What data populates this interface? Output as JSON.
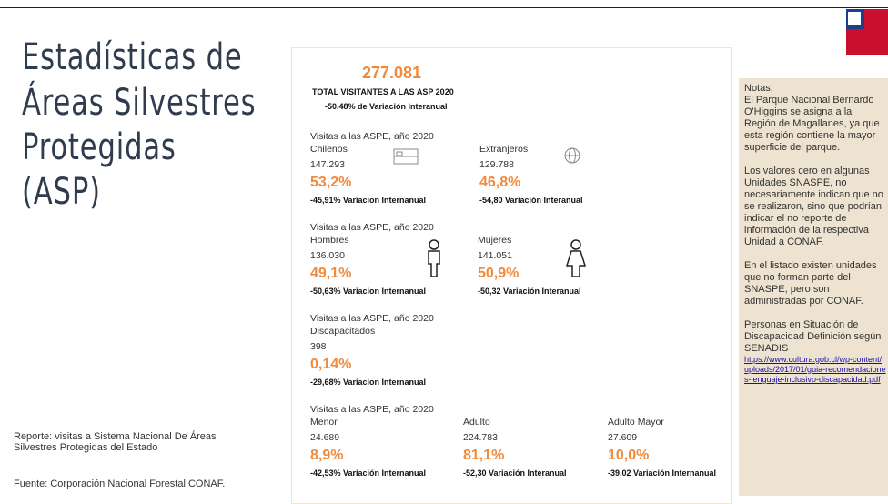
{
  "header": {
    "title_lines": [
      "Estadísticas de",
      "Áreas Silvestres",
      "Protegidas",
      "(ASP)"
    ]
  },
  "footer": {
    "report": "Reporte: visitas a Sistema Nacional De Áreas Silvestres Protegidas del Estado",
    "source": "Fuente: Corporación Nacional Forestal CONAF."
  },
  "total": {
    "value": "277.081",
    "label": "TOTAL VISITANTES A LAS ASP 2020",
    "variation": "-50,48% de Variación Interanual"
  },
  "groups": [
    {
      "heading": "Visitas a las ASPE, año 2020",
      "items": [
        {
          "name": "Chilenos",
          "count": "147.293",
          "percent": "53,2%",
          "variation": "-45,91% Variacion Internanual"
        },
        {
          "name": "Extranjeros",
          "count": "129.788",
          "percent": "46,8%",
          "variation": "-54,80 Variación Interanual"
        }
      ]
    },
    {
      "heading": "Visitas a las ASPE, año 2020",
      "items": [
        {
          "name": "Hombres",
          "count": "136.030",
          "percent": "49,1%",
          "variation": "-50,63% Variacion Internanual"
        },
        {
          "name": "Mujeres",
          "count": "141.051",
          "percent": "50,9%",
          "variation": "-50,32 Variación Interanual"
        }
      ]
    },
    {
      "heading": "Visitas a las ASPE, año 2020",
      "items": [
        {
          "name": "Discapacitados",
          "count": "398",
          "percent": "0,14%",
          "variation": "-29,68% Variacion Internanual"
        }
      ]
    },
    {
      "heading": "Visitas a las ASPE, año 2020",
      "items": [
        {
          "name": "Menor",
          "count": "24.689",
          "percent": "8,9%",
          "variation": "-42,53% Variación Internanual"
        },
        {
          "name": "Adulto",
          "count": "224.783",
          "percent": "81,1%",
          "variation": "-52,30 Variación Interanual"
        },
        {
          "name": "Adulto Mayor",
          "count": "27.609",
          "percent": "10,0%",
          "variation": "-39,02 Variación Internanual"
        }
      ]
    }
  ],
  "notes": {
    "heading": "Notas:",
    "paragraphs": [
      "El Parque Nacional Bernardo O'Higgins se asigna a la Región de Magallanes, ya que esta región contiene la mayor superficie del parque.",
      "Los valores cero en algunas Unidades SNASPE, no necesariamente indican que no se realizaron, sino que podrían indicar el no reporte de información de la respectiva Unidad a CONAF.",
      "En el listado existen unidades que no forman parte del SNASPE, pero son administradas por CONAF.",
      "Personas en Situación de Discapacidad Definición según SENADIS"
    ],
    "link": "https://www.cultura.gob.cl/wp-content/uploads/2017/01/guia-recomendaciones-lenguaje-inclusivo-discapacidad.pdf"
  }
}
